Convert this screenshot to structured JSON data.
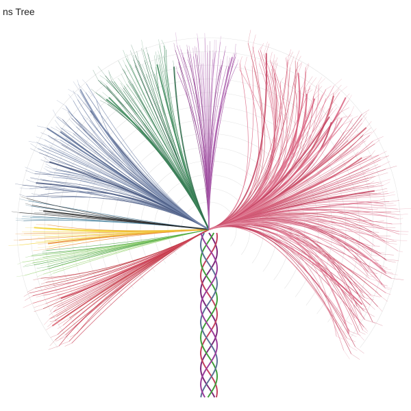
{
  "header": {
    "title": "ns Tree"
  }
}
